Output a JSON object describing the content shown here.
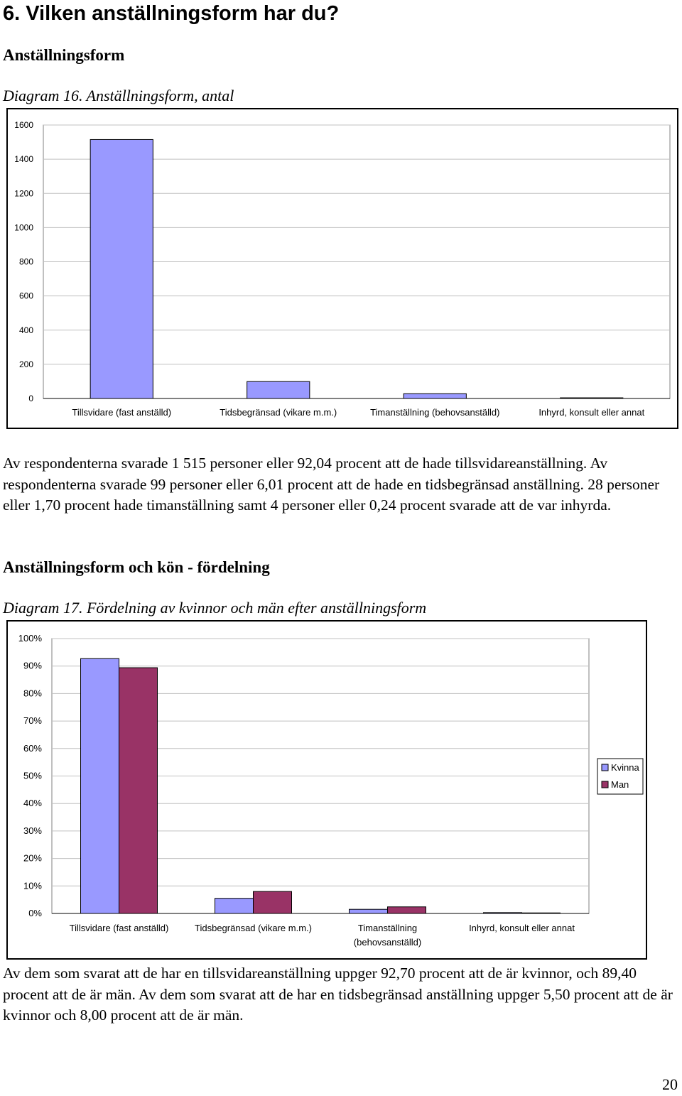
{
  "heading": "6. Vilken anställningsform har du?",
  "section1": {
    "title": "Anställningsform",
    "caption": "Diagram 16. Anställningsform, antal",
    "paragraph": "Av respondenterna svarade 1 515 personer eller 92,04 procent att de hade tillsvidareanställning. Av respondenterna svarade 99 personer eller 6,01 procent att de hade en tidsbegränsad anställning. 28 personer eller 1,70 procent hade timanställning samt 4 personer eller 0,24 procent svarade att de var inhyrda."
  },
  "section2": {
    "title": "Anställningsform och kön - fördelning",
    "caption": "Diagram 17. Fördelning av kvinnor och män efter anställningsform",
    "paragraph": "Av dem som svarat att de har en tillsvidareanställning uppger 92,70 procent att de är kvinnor, och 89,40 procent att de är män. Av dem som svarat att de har en tidsbegränsad anställning uppger 5,50 procent att de är kvinnor och 8,00 procent att de är män."
  },
  "page_number": "20",
  "colors": {
    "kvinna": "#9999ff",
    "man": "#993366",
    "grid": "#c0c0c0"
  },
  "chart_data": [
    {
      "type": "bar",
      "categories": [
        "Tillsvidare (fast anställd)",
        "Tidsbegränsad (vikare m.m.)",
        "Timanställning (behovsanställd)",
        "Inhyrd, konsult eller annat"
      ],
      "values": [
        1515,
        99,
        28,
        4
      ],
      "ylim": [
        0,
        1600
      ],
      "yticks": [
        "0",
        "200",
        "400",
        "600",
        "800",
        "1000",
        "1200",
        "1400",
        "1600"
      ],
      "grid": true
    },
    {
      "type": "bar",
      "categories": [
        [
          "Tillsvidare (fast anställd)"
        ],
        [
          "Tidsbegränsad (vikare m.m.)"
        ],
        [
          "Timanställning",
          "(behovsanställd)"
        ],
        [
          "Inhyrd, konsult eller annat"
        ]
      ],
      "series": [
        {
          "name": "Kvinna",
          "values": [
            92.7,
            5.5,
            1.5,
            0.3
          ]
        },
        {
          "name": "Man",
          "values": [
            89.4,
            8.0,
            2.4,
            0.2
          ]
        }
      ],
      "ylim": [
        0,
        100
      ],
      "yticks": [
        "0%",
        "10%",
        "20%",
        "30%",
        "40%",
        "50%",
        "60%",
        "70%",
        "80%",
        "90%",
        "100%"
      ],
      "legend": "right",
      "grid": true
    }
  ]
}
